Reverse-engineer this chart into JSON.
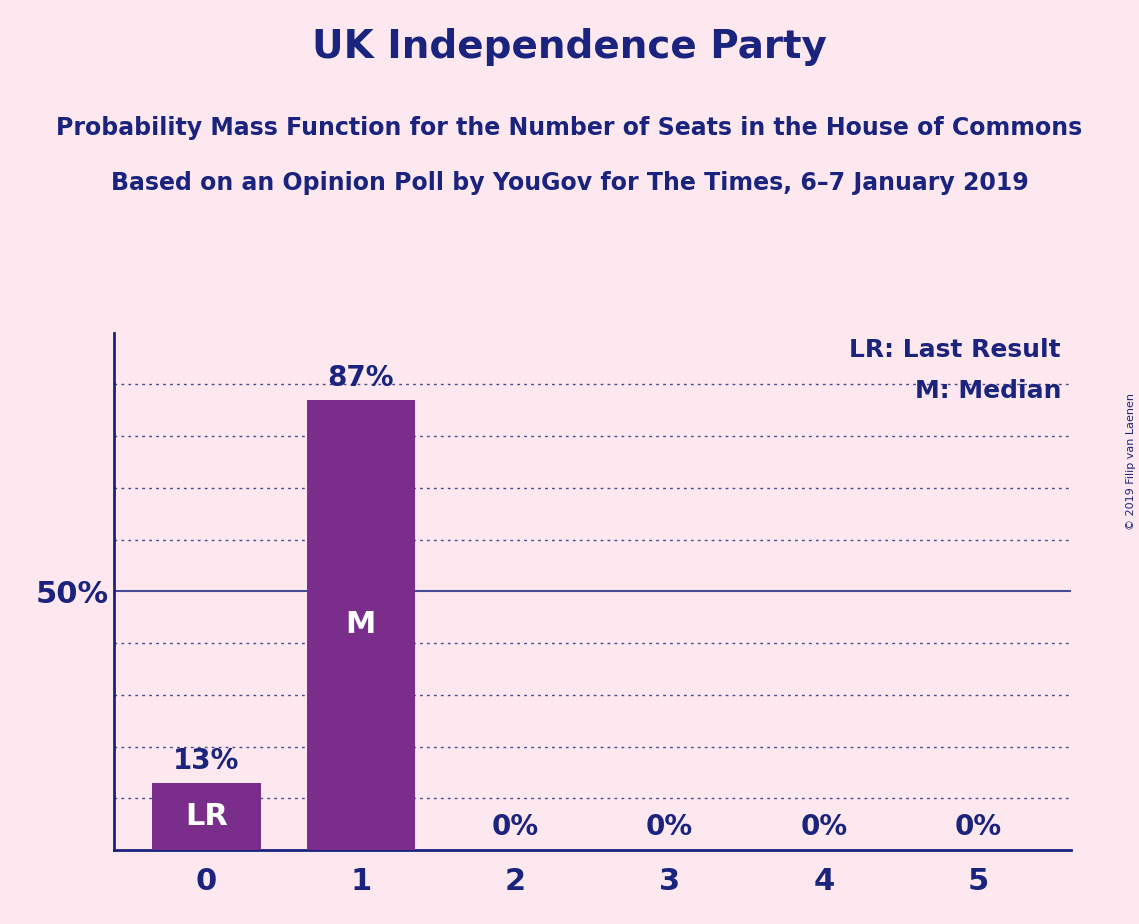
{
  "title": "UK Independence Party",
  "subtitle1": "Probability Mass Function for the Number of Seats in the House of Commons",
  "subtitle2": "Based on an Opinion Poll by YouGov for The Times, 6–7 January 2019",
  "copyright": "© 2019 Filip van Laenen",
  "legend1": "LR: Last Result",
  "legend2": "M: Median",
  "categories": [
    0,
    1,
    2,
    3,
    4,
    5
  ],
  "values": [
    0.13,
    0.87,
    0.0,
    0.0,
    0.0,
    0.0
  ],
  "bar_labels": [
    "LR",
    "M",
    "",
    "",
    "",
    ""
  ],
  "value_labels": [
    "13%",
    "87%",
    "0%",
    "0%",
    "0%",
    "0%"
  ],
  "bar_color": "#7b2d8b",
  "background_color": "#fce8ee",
  "text_color": "#1a237e",
  "ylim": [
    0,
    1.0
  ],
  "ytick_positions": [
    0.5
  ],
  "ytick_labels": [
    "50%"
  ],
  "dotted_grid_positions": [
    0.1,
    0.2,
    0.3,
    0.4,
    0.6,
    0.7,
    0.8,
    0.9
  ],
  "solid_grid_positions": [
    0.5
  ],
  "title_fontsize": 28,
  "subtitle_fontsize": 17,
  "bar_label_fontsize": 22,
  "value_label_fontsize": 20,
  "tick_fontsize": 22,
  "legend_fontsize": 18,
  "copyright_fontsize": 8
}
